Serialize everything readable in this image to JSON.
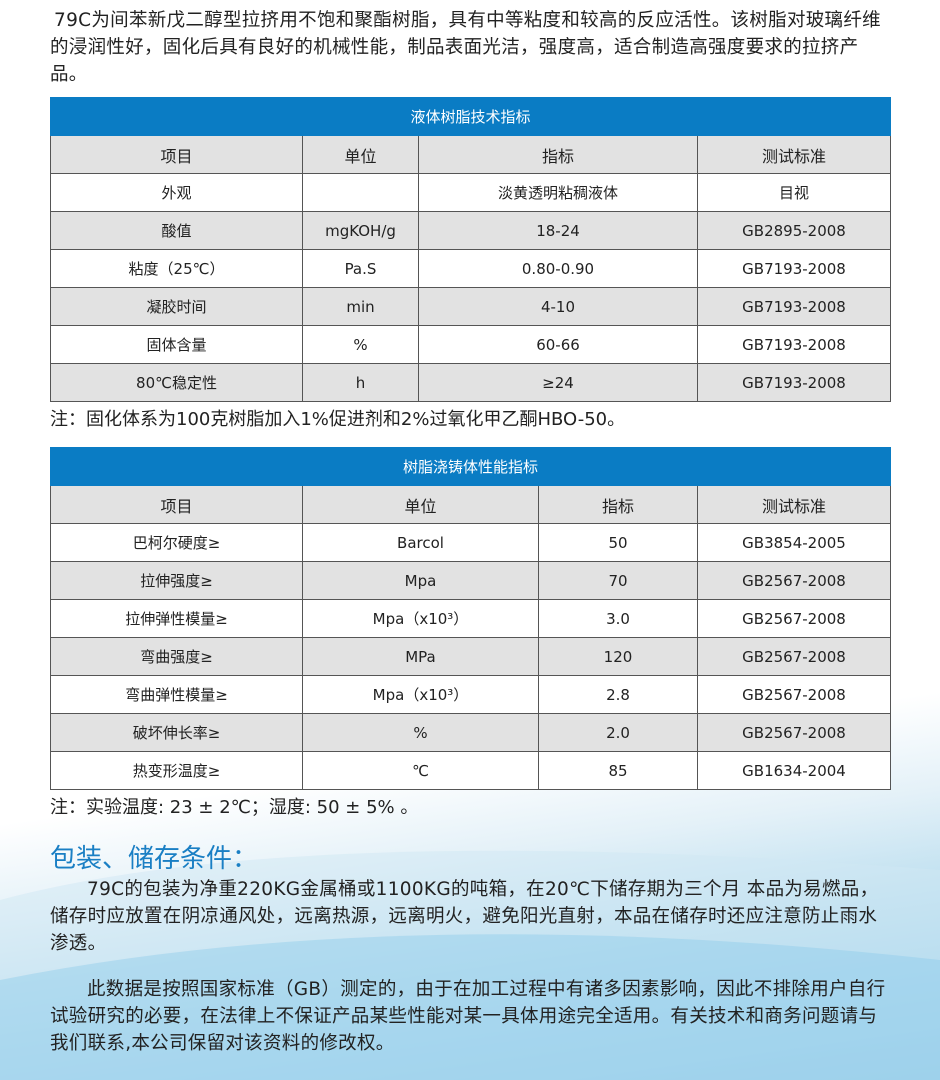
{
  "intro": "79C为间苯新戊二醇型拉挤用不饱和聚酯树脂，具有中等粘度和较高的反应活性。该树脂对玻璃纤维的浸润性好，固化后具有良好的机械性能，制品表面光洁，强度高，适合制造高强度要求的拉挤产品。",
  "table1": {
    "title": "液体树脂技术指标",
    "headers": [
      "项目",
      "单位",
      "指标",
      "测试标准"
    ],
    "rows": [
      [
        "外观",
        "",
        "淡黄透明粘稠液体",
        "目视"
      ],
      [
        "酸值",
        "mgKOH/g",
        "18-24",
        "GB2895-2008"
      ],
      [
        "粘度（25℃）",
        "Pa.S",
        "0.80-0.90",
        "GB7193-2008"
      ],
      [
        "凝胶时间",
        "min",
        "4-10",
        "GB7193-2008"
      ],
      [
        "固体含量",
        "%",
        "60-66",
        "GB7193-2008"
      ],
      [
        "80℃稳定性",
        "h",
        "≥24",
        "GB7193-2008"
      ]
    ]
  },
  "note1": "注：固化体系为100克树脂加入1%促进剂和2%过氧化甲乙酮HBO-50。",
  "table2": {
    "title": "树脂浇铸体性能指标",
    "headers": [
      "项目",
      "单位",
      "指标",
      "测试标准"
    ],
    "rows": [
      [
        "巴柯尔硬度≥",
        "Barcol",
        "50",
        "GB3854-2005"
      ],
      [
        "拉伸强度≥",
        "Mpa",
        "70",
        "GB2567-2008"
      ],
      [
        "拉伸弹性模量≥",
        "Mpa（x10³）",
        "3.0",
        "GB2567-2008"
      ],
      [
        "弯曲强度≥",
        "MPa",
        "120",
        "GB2567-2008"
      ],
      [
        "弯曲弹性模量≥",
        "Mpa（x10³）",
        "2.8",
        "GB2567-2008"
      ],
      [
        "破坏伸长率≥",
        "%",
        "2.0",
        "GB2567-2008"
      ],
      [
        "热变形温度≥",
        "℃",
        "85",
        "GB1634-2004"
      ]
    ]
  },
  "note2": "注：实验温度: 23 ± 2℃；湿度: 50 ± 5% 。",
  "section_title": "包装、储存条件：",
  "para1": "79C的包装为净重220KG金属桶或1100KG的吨箱，在20℃下储存期为三个月 本品为易燃品，储存时应放置在阴凉通风处，远离热源，远离明火，避免阳光直射，本品在储存时还应注意防止雨水渗透。",
  "para2": "此数据是按照国家标准（GB）测定的，由于在加工过程中有诸多因素影响，因此不排除用户自行试验研究的必要，在法律上不保证产品某些性能对某一具体用途完全适用。有关技术和商务问题请与我们联系,本公司保留对该资料的修改权。",
  "colors": {
    "header_blue": "#0a7cc4",
    "section_blue": "#1a7fc4",
    "row_gray": "#e2e2e2"
  }
}
